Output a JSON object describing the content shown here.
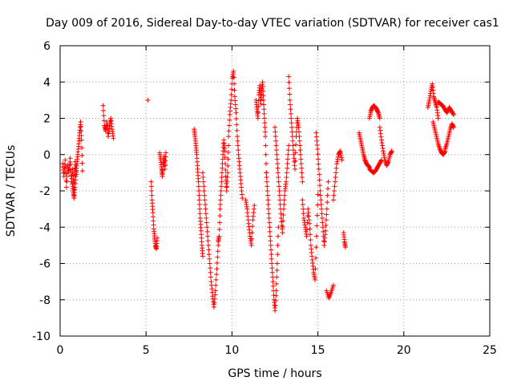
{
  "chart_data": {
    "type": "scatter",
    "title": "Day 009 of 2016, Sidereal Day-to-day VTEC variation (SDTVAR) for receiver cas1",
    "xlabel": "GPS time / hours",
    "ylabel": "SDTVAR / TECUs",
    "xlim": [
      0,
      25
    ],
    "ylim": [
      -10,
      6
    ],
    "xticks": [
      0,
      5,
      10,
      15,
      20,
      25
    ],
    "yticks": [
      -10,
      -8,
      -6,
      -4,
      -2,
      0,
      2,
      4,
      6
    ],
    "grid": true,
    "marker": "+",
    "marker_color": "#ff0000",
    "series": [
      {
        "name": "SDTVAR",
        "segments": [
          {
            "from": 0.15,
            "to": 0.95,
            "y": [
              -0.5,
              -1.2,
              -0.3,
              -1.8,
              -0.6,
              -1.0,
              -0.2,
              -1.5,
              -0.8,
              -1.9,
              -0.4,
              -1.1
            ]
          },
          {
            "from": 0.7,
            "to": 1.3,
            "y": [
              -1.5,
              -2.0,
              -2.4,
              -1.8,
              -1.0,
              -0.5,
              0.0,
              0.6,
              1.2,
              1.8,
              0.8,
              -0.9
            ]
          },
          {
            "from": 2.5,
            "to": 3.1,
            "y": [
              2.7,
              1.6,
              1.3,
              1.8,
              1.0,
              1.6,
              2.0,
              1.4,
              0.9
            ]
          },
          {
            "from": 5.1,
            "to": 5.15,
            "y": [
              3.0
            ]
          },
          {
            "from": 5.3,
            "to": 5.65,
            "y": [
              -1.5,
              -2.5,
              -3.2,
              -4.1,
              -4.6,
              -5.0,
              -5.2,
              -4.6
            ]
          },
          {
            "from": 5.8,
            "to": 6.15,
            "y": [
              0.1,
              -0.3,
              -0.8,
              -1.2,
              -0.5,
              -0.1,
              -0.8,
              0.1
            ]
          },
          {
            "from": 7.8,
            "to": 8.3,
            "y": [
              1.4,
              1.0,
              0.5,
              0.0,
              -0.8,
              -1.5,
              -2.5,
              -3.5,
              -4.2,
              -5.0,
              -5.6
            ]
          },
          {
            "from": 8.3,
            "to": 9.2,
            "y": [
              -1.0,
              -2.0,
              -3.0,
              -4.0,
              -5.0,
              -6.0,
              -7.0,
              -7.8,
              -8.4,
              -7.5,
              -6.3,
              -5.0
            ]
          },
          {
            "from": 9.2,
            "to": 9.8,
            "y": [
              -4.8,
              -4.5,
              -3.0,
              -2.0,
              -1.0,
              0.0,
              0.8,
              0.2,
              -1.2,
              -2.0,
              -1.0,
              0.5
            ]
          },
          {
            "from": 9.8,
            "to": 10.6,
            "y": [
              1.0,
              2.2,
              3.0,
              4.2,
              4.6,
              3.2,
              2.3,
              1.0,
              0.0,
              -0.8,
              -1.6,
              -2.4
            ]
          },
          {
            "from": 10.8,
            "to": 11.3,
            "y": [
              -2.5,
              -3.0,
              -3.8,
              -4.5,
              -5.0,
              -3.6,
              -2.8
            ]
          },
          {
            "from": 11.4,
            "to": 12.0,
            "y": [
              3.0,
              2.5,
              2.0,
              3.3,
              3.8,
              2.8,
              3.5,
              4.0,
              3.0,
              2.0,
              1.0,
              -1.0
            ]
          },
          {
            "from": 12.0,
            "to": 12.7,
            "y": [
              -1.0,
              -2.0,
              -3.0,
              -4.0,
              -5.0,
              -6.0,
              -7.0,
              -8.0,
              -8.6,
              -7.5,
              -6.0,
              -4.0
            ]
          },
          {
            "from": 12.5,
            "to": 13.3,
            "y": [
              1.5,
              0.5,
              -0.5,
              -1.5,
              -2.5,
              -3.5,
              -4.3,
              -3.0,
              -2.0,
              -1.5,
              -0.5,
              0.5
            ]
          },
          {
            "from": 13.3,
            "to": 14.1,
            "y": [
              4.3,
              3.0,
              2.0,
              1.0,
              0.0,
              -0.8,
              1.0,
              2.0,
              1.5,
              0.5,
              -0.5,
              -1.5
            ]
          },
          {
            "from": 14.1,
            "to": 15.0,
            "y": [
              -2.5,
              -3.5,
              -4.0,
              -4.5,
              -3.0,
              -3.8,
              -5.0,
              -5.8,
              -6.5,
              -6.9,
              -4.5,
              -2.2
            ]
          },
          {
            "from": 14.9,
            "to": 15.6,
            "y": [
              1.2,
              0.3,
              -0.8,
              -2.0,
              -3.0,
              -4.0,
              -5.0,
              -4.2,
              -3.0,
              -1.5
            ]
          },
          {
            "from": 15.5,
            "to": 15.9,
            "y": [
              -7.5,
              -7.9,
              -7.6,
              -7.2
            ]
          },
          {
            "from": 15.9,
            "to": 16.4,
            "y": [
              -2.5,
              -1.5,
              -0.5,
              0.0,
              0.2,
              -0.3
            ]
          },
          {
            "from": 16.5,
            "to": 16.6,
            "y": [
              -4.3,
              -4.8,
              -5.1
            ]
          },
          {
            "from": 17.4,
            "to": 18.0,
            "y": [
              1.2,
              0.8,
              0.4,
              0.0,
              -0.3,
              -0.5,
              -0.6,
              -0.7
            ]
          },
          {
            "from": 18.0,
            "to": 18.7,
            "y": [
              -0.8,
              -0.9,
              -1.0,
              -0.9,
              -0.7,
              -0.5,
              -0.3
            ]
          },
          {
            "from": 18.0,
            "to": 18.6,
            "y": [
              2.0,
              2.4,
              2.6,
              2.7,
              2.6,
              2.5,
              2.3,
              2.0
            ]
          },
          {
            "from": 18.6,
            "to": 19.3,
            "y": [
              1.5,
              0.8,
              0.2,
              -0.3,
              -0.6,
              -0.4,
              0.0,
              0.2
            ]
          },
          {
            "from": 21.4,
            "to": 22.0,
            "y": [
              2.6,
              3.0,
              3.5,
              3.9,
              3.2,
              2.9,
              2.6,
              2.0
            ]
          },
          {
            "from": 21.7,
            "to": 22.4,
            "y": [
              1.8,
              1.4,
              1.0,
              0.6,
              0.3,
              0.1,
              0.0,
              0.2
            ]
          },
          {
            "from": 22.0,
            "to": 22.9,
            "y": [
              2.9,
              2.8,
              2.7,
              2.5,
              2.3,
              2.6,
              2.4,
              2.2
            ]
          },
          {
            "from": 22.4,
            "to": 22.9,
            "y": [
              0.3,
              0.6,
              1.0,
              1.4,
              1.7,
              1.5
            ]
          }
        ]
      }
    ]
  }
}
